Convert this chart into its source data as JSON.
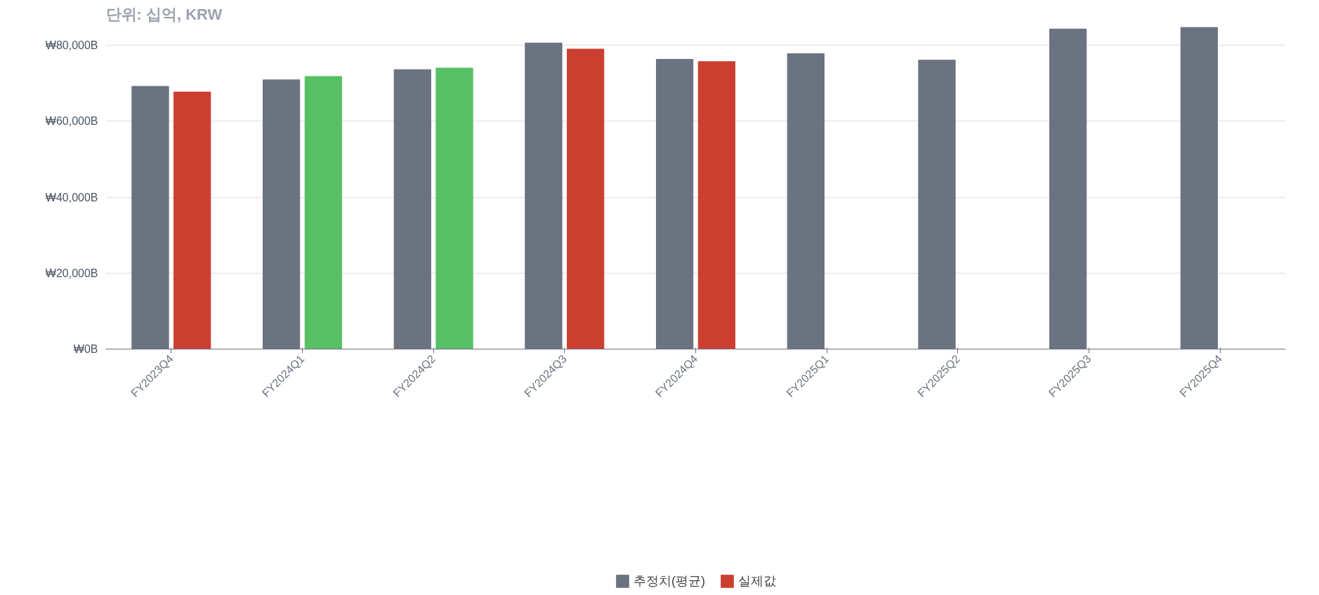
{
  "chart_data": {
    "type": "bar",
    "title": "단위: 십억, KRW",
    "categories": [
      "FY2023Q4",
      "FY2024Q1",
      "FY2024Q2",
      "FY2024Q3",
      "FY2024Q4",
      "FY2025Q1",
      "FY2025Q2",
      "FY2025Q3",
      "FY2025Q4"
    ],
    "series": [
      {
        "name": "추정치(평균)",
        "color": "#6b7280",
        "values": [
          69200,
          70900,
          73600,
          80600,
          76300,
          77800,
          76100,
          84300,
          84700
        ]
      },
      {
        "name": "실제값",
        "colors": [
          "#cc3e2f",
          "#58c064",
          "#58c064",
          "#cc3e2f",
          "#cc3e2f",
          null,
          null,
          null,
          null
        ],
        "values": [
          67700,
          71800,
          74000,
          79000,
          75700,
          null,
          null,
          null,
          null
        ]
      }
    ],
    "ylim": [
      0,
      85000
    ],
    "yticks": [
      {
        "value": 0,
        "label": "₩0B"
      },
      {
        "value": 20000,
        "label": "₩20,000B"
      },
      {
        "value": 40000,
        "label": "₩40,000B"
      },
      {
        "value": 60000,
        "label": "₩60,000B"
      },
      {
        "value": 80000,
        "label": "₩80,000B"
      }
    ],
    "grid": "y",
    "legend": "bottom"
  }
}
